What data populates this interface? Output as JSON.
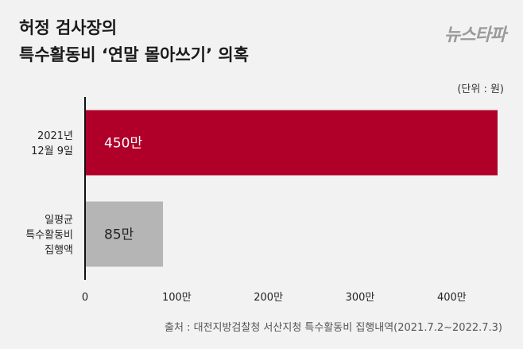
{
  "header": {
    "title_line1": "허정 검사장의",
    "title_line2": "특수활동비 ‘연말 몰아쓰기’ 의혹",
    "logo": "뉴스타파"
  },
  "unit_label": "(단위 : 원)",
  "source": "출처 : 대전지방검찰청 서산지청 특수활동비 집행내역(2021.7.2~2022.7.3)",
  "colors": {
    "highlight": "#b0002a",
    "base": "#b5b5b5",
    "background": "#f2f2f2"
  },
  "chart_data": {
    "type": "bar",
    "orientation": "horizontal",
    "categories": [
      [
        "2021년",
        "12월 9일"
      ],
      [
        "일평균",
        "특수활동비",
        "집행액"
      ]
    ],
    "values": [
      4500000,
      850000
    ],
    "data_labels": [
      "450만",
      "85만"
    ],
    "bar_colors": [
      "#b0002a",
      "#b5b5b5"
    ],
    "label_colors": [
      "#ffffff",
      "#222222"
    ],
    "xlim": [
      0,
      4500000
    ],
    "xticks": [
      0,
      1000000,
      2000000,
      3000000,
      4000000
    ],
    "xtick_labels": [
      "0",
      "100만",
      "200만",
      "300만",
      "400만"
    ],
    "grid": false
  }
}
